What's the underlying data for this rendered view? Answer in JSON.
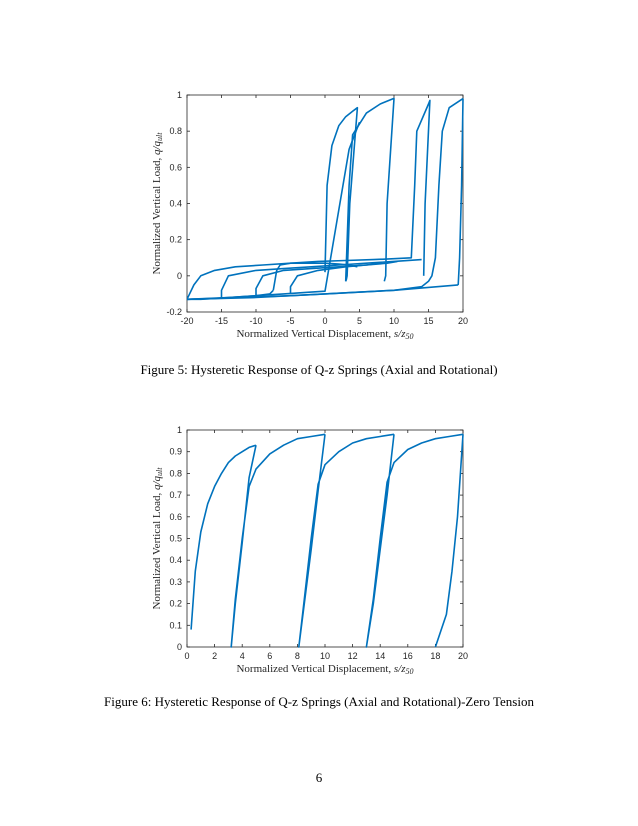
{
  "page_number": "6",
  "figures": [
    {
      "caption": "Figure 5: Hysteretic Response of Q-z Springs (Axial and Rotational)"
    },
    {
      "caption": "Figure 6: Hysteretic Response of Q-z Springs (Axial and Rotational)-Zero Tension"
    }
  ],
  "chart_data": [
    {
      "type": "line",
      "xlabel": "Normalized Vertical Displacement, s/z50",
      "ylabel": "Normalized Vertical Load, q/qult",
      "xlim": [
        -20,
        20
      ],
      "ylim": [
        -0.2,
        1
      ],
      "xticks": [
        "-20",
        "-15",
        "-10",
        "-5",
        "0",
        "5",
        "10",
        "15",
        "20"
      ],
      "yticks": [
        "-0.2",
        "0",
        "0.2",
        "0.4",
        "0.6",
        "0.8",
        "1"
      ],
      "grid": false,
      "color": "#0072BD",
      "series": [
        {
          "x": [
            0,
            0.3,
            1,
            2,
            3,
            4,
            4.7,
            4.7,
            3.6,
            3.3,
            3.2,
            3.1,
            3.0
          ],
          "y": [
            0.02,
            0.5,
            0.72,
            0.83,
            0.88,
            0.91,
            0.93,
            0.93,
            0.4,
            0.1,
            0.0,
            -0.02,
            -0.03
          ]
        },
        {
          "x": [
            -20,
            -17,
            -14,
            -10,
            -6,
            -2,
            0,
            3.5,
            5
          ],
          "y": [
            -0.13,
            -0.125,
            -0.12,
            -0.11,
            -0.1,
            -0.09,
            -0.085,
            0.7,
            0.85
          ]
        },
        {
          "x": [
            3,
            3.5,
            4,
            6,
            8,
            9.9,
            10,
            9,
            8.8,
            8.6
          ],
          "y": [
            -0.03,
            0.5,
            0.78,
            0.9,
            0.95,
            0.98,
            0.98,
            0.4,
            0.0,
            -0.03
          ]
        },
        {
          "x": [
            4.7,
            3.5,
            2,
            0,
            -2,
            -5,
            -6.5,
            -7,
            -7.5
          ],
          "y": [
            0.05,
            0.06,
            0.065,
            0.07,
            0.07,
            0.07,
            0.06,
            0.03,
            -0.08
          ]
        },
        {
          "x": [
            -7.5,
            -8,
            -10,
            -14,
            -18,
            -20
          ],
          "y": [
            -0.08,
            -0.1,
            -0.11,
            -0.12,
            -0.13,
            -0.13
          ]
        },
        {
          "x": [
            -20,
            -19,
            -18,
            -16,
            -13,
            -9,
            -5,
            -1,
            3,
            7,
            10
          ],
          "y": [
            -0.13,
            -0.05,
            0.0,
            0.03,
            0.05,
            0.06,
            0.07,
            0.08,
            0.085,
            0.09,
            0.095
          ]
        },
        {
          "x": [
            10,
            12.5,
            13,
            13.3,
            15,
            15.2,
            15.2,
            14.5,
            14.3
          ],
          "y": [
            0.095,
            0.1,
            0.5,
            0.8,
            0.95,
            0.97,
            0.97,
            0.4,
            0.0
          ]
        },
        {
          "x": [
            -15,
            -15,
            -14,
            -10,
            -6,
            -2,
            2,
            6,
            10,
            14
          ],
          "y": [
            -0.12,
            -0.08,
            0.0,
            0.03,
            0.04,
            0.05,
            0.06,
            0.07,
            0.08,
            0.09
          ]
        },
        {
          "x": [
            -10,
            -10,
            -9,
            -6,
            -2,
            2,
            6,
            9,
            10.5
          ],
          "y": [
            -0.11,
            -0.07,
            0.0,
            0.03,
            0.04,
            0.05,
            0.06,
            0.07,
            0.08
          ]
        },
        {
          "x": [
            -5,
            -5,
            -4,
            -1,
            3,
            6,
            8
          ],
          "y": [
            -0.1,
            -0.06,
            0.0,
            0.03,
            0.05,
            0.06,
            0.07
          ]
        },
        {
          "x": [
            -20,
            -12,
            -5,
            0,
            5,
            10,
            14,
            15,
            15.5,
            16,
            16.5,
            17,
            18,
            20
          ],
          "y": [
            -0.13,
            -0.12,
            -0.11,
            -0.1,
            -0.09,
            -0.08,
            -0.06,
            -0.03,
            0.0,
            0.1,
            0.5,
            0.8,
            0.93,
            0.98
          ]
        },
        {
          "x": [
            20,
            19.8,
            19.5,
            19.3
          ],
          "y": [
            0.98,
            0.5,
            0.1,
            -0.05
          ]
        },
        {
          "x": [
            -20,
            -10,
            0,
            10,
            19.3
          ],
          "y": [
            -0.13,
            -0.12,
            -0.1,
            -0.08,
            -0.05
          ]
        }
      ]
    },
    {
      "type": "line",
      "xlabel": "Normalized Vertical Displacement, s/z50",
      "ylabel": "Normalized Vertical Load, q/qult",
      "xlim": [
        0,
        20
      ],
      "ylim": [
        0,
        1
      ],
      "xticks": [
        "0",
        "2",
        "4",
        "6",
        "8",
        "10",
        "12",
        "14",
        "16",
        "18",
        "20"
      ],
      "yticks": [
        "0",
        "0.1",
        "0.2",
        "0.3",
        "0.4",
        "0.5",
        "0.6",
        "0.7",
        "0.8",
        "0.9",
        "1"
      ],
      "grid": false,
      "color": "#0072BD",
      "series": [
        {
          "x": [
            0.3,
            0.6,
            1,
            1.5,
            2,
            2.5,
            3,
            3.5,
            4,
            4.5,
            5.0
          ],
          "y": [
            0.08,
            0.35,
            0.53,
            0.66,
            0.74,
            0.8,
            0.85,
            0.88,
            0.9,
            0.92,
            0.93
          ]
        },
        {
          "x": [
            5.0,
            4.5,
            4.0,
            3.5,
            3.2,
            3.2,
            3.5,
            4.0,
            4.5,
            5.0,
            6,
            7,
            8,
            9,
            10.0
          ],
          "y": [
            0.93,
            0.78,
            0.48,
            0.2,
            0.0,
            0.0,
            0.22,
            0.5,
            0.74,
            0.82,
            0.89,
            0.93,
            0.96,
            0.97,
            0.98
          ]
        },
        {
          "x": [
            10.0,
            9.5,
            9.0,
            8.5,
            8.1,
            8.1,
            8.5,
            9.0,
            9.5,
            10,
            11,
            12,
            13,
            14,
            15.0
          ],
          "y": [
            0.98,
            0.72,
            0.45,
            0.2,
            0.0,
            0.0,
            0.22,
            0.5,
            0.75,
            0.84,
            0.9,
            0.94,
            0.96,
            0.97,
            0.98
          ]
        },
        {
          "x": [
            15.0,
            14.5,
            14.0,
            13.5,
            13.0,
            13.0,
            13.5,
            14.0,
            14.5,
            15,
            16,
            17,
            18,
            19,
            20.0
          ],
          "y": [
            0.98,
            0.7,
            0.45,
            0.2,
            0.0,
            0.0,
            0.22,
            0.5,
            0.76,
            0.85,
            0.91,
            0.94,
            0.96,
            0.97,
            0.98
          ]
        },
        {
          "x": [
            20.0,
            19.6,
            19.2,
            18.8,
            18.0
          ],
          "y": [
            0.98,
            0.6,
            0.35,
            0.15,
            0.0
          ]
        }
      ]
    }
  ]
}
